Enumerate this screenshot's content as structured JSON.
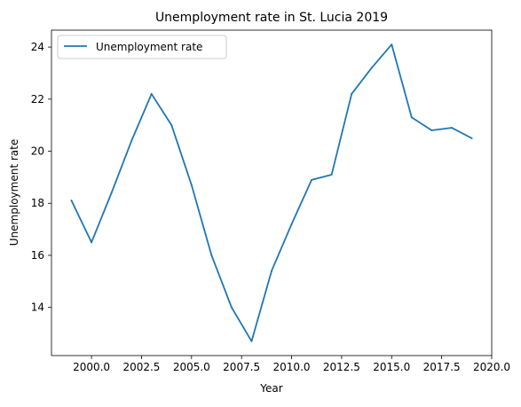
{
  "chart_data": {
    "type": "line",
    "title": "Unemployment rate in St. Lucia 2019",
    "xlabel": "Year",
    "ylabel": "Unemployment rate",
    "xlim": [
      1998.0,
      2020.0
    ],
    "ylim": [
      12.15,
      24.65
    ],
    "xticks": [
      2000.0,
      2002.5,
      2005.0,
      2007.5,
      2010.0,
      2012.5,
      2015.0,
      2017.5,
      2020.0
    ],
    "xtick_labels": [
      "2000.0",
      "2002.5",
      "2005.0",
      "2007.5",
      "2010.0",
      "2012.5",
      "2015.0",
      "2017.5",
      "2020.0"
    ],
    "yticks": [
      14,
      16,
      18,
      20,
      22,
      24
    ],
    "ytick_labels": [
      "14",
      "16",
      "18",
      "20",
      "22",
      "24"
    ],
    "grid": false,
    "legend": "top-left",
    "series": [
      {
        "name": "Unemployment rate",
        "color": "#1f77b4",
        "x": [
          1999,
          2000,
          2001,
          2002,
          2003,
          2004,
          2005,
          2006,
          2007,
          2008,
          2009,
          2010,
          2011,
          2012,
          2013,
          2014,
          2015,
          2016,
          2017,
          2018,
          2019
        ],
        "y": [
          18.1,
          16.5,
          18.4,
          20.4,
          22.2,
          21.0,
          18.7,
          16.0,
          14.0,
          12.7,
          15.4,
          17.2,
          18.9,
          19.1,
          22.2,
          23.2,
          24.1,
          21.3,
          20.8,
          20.9,
          20.5
        ]
      }
    ]
  }
}
